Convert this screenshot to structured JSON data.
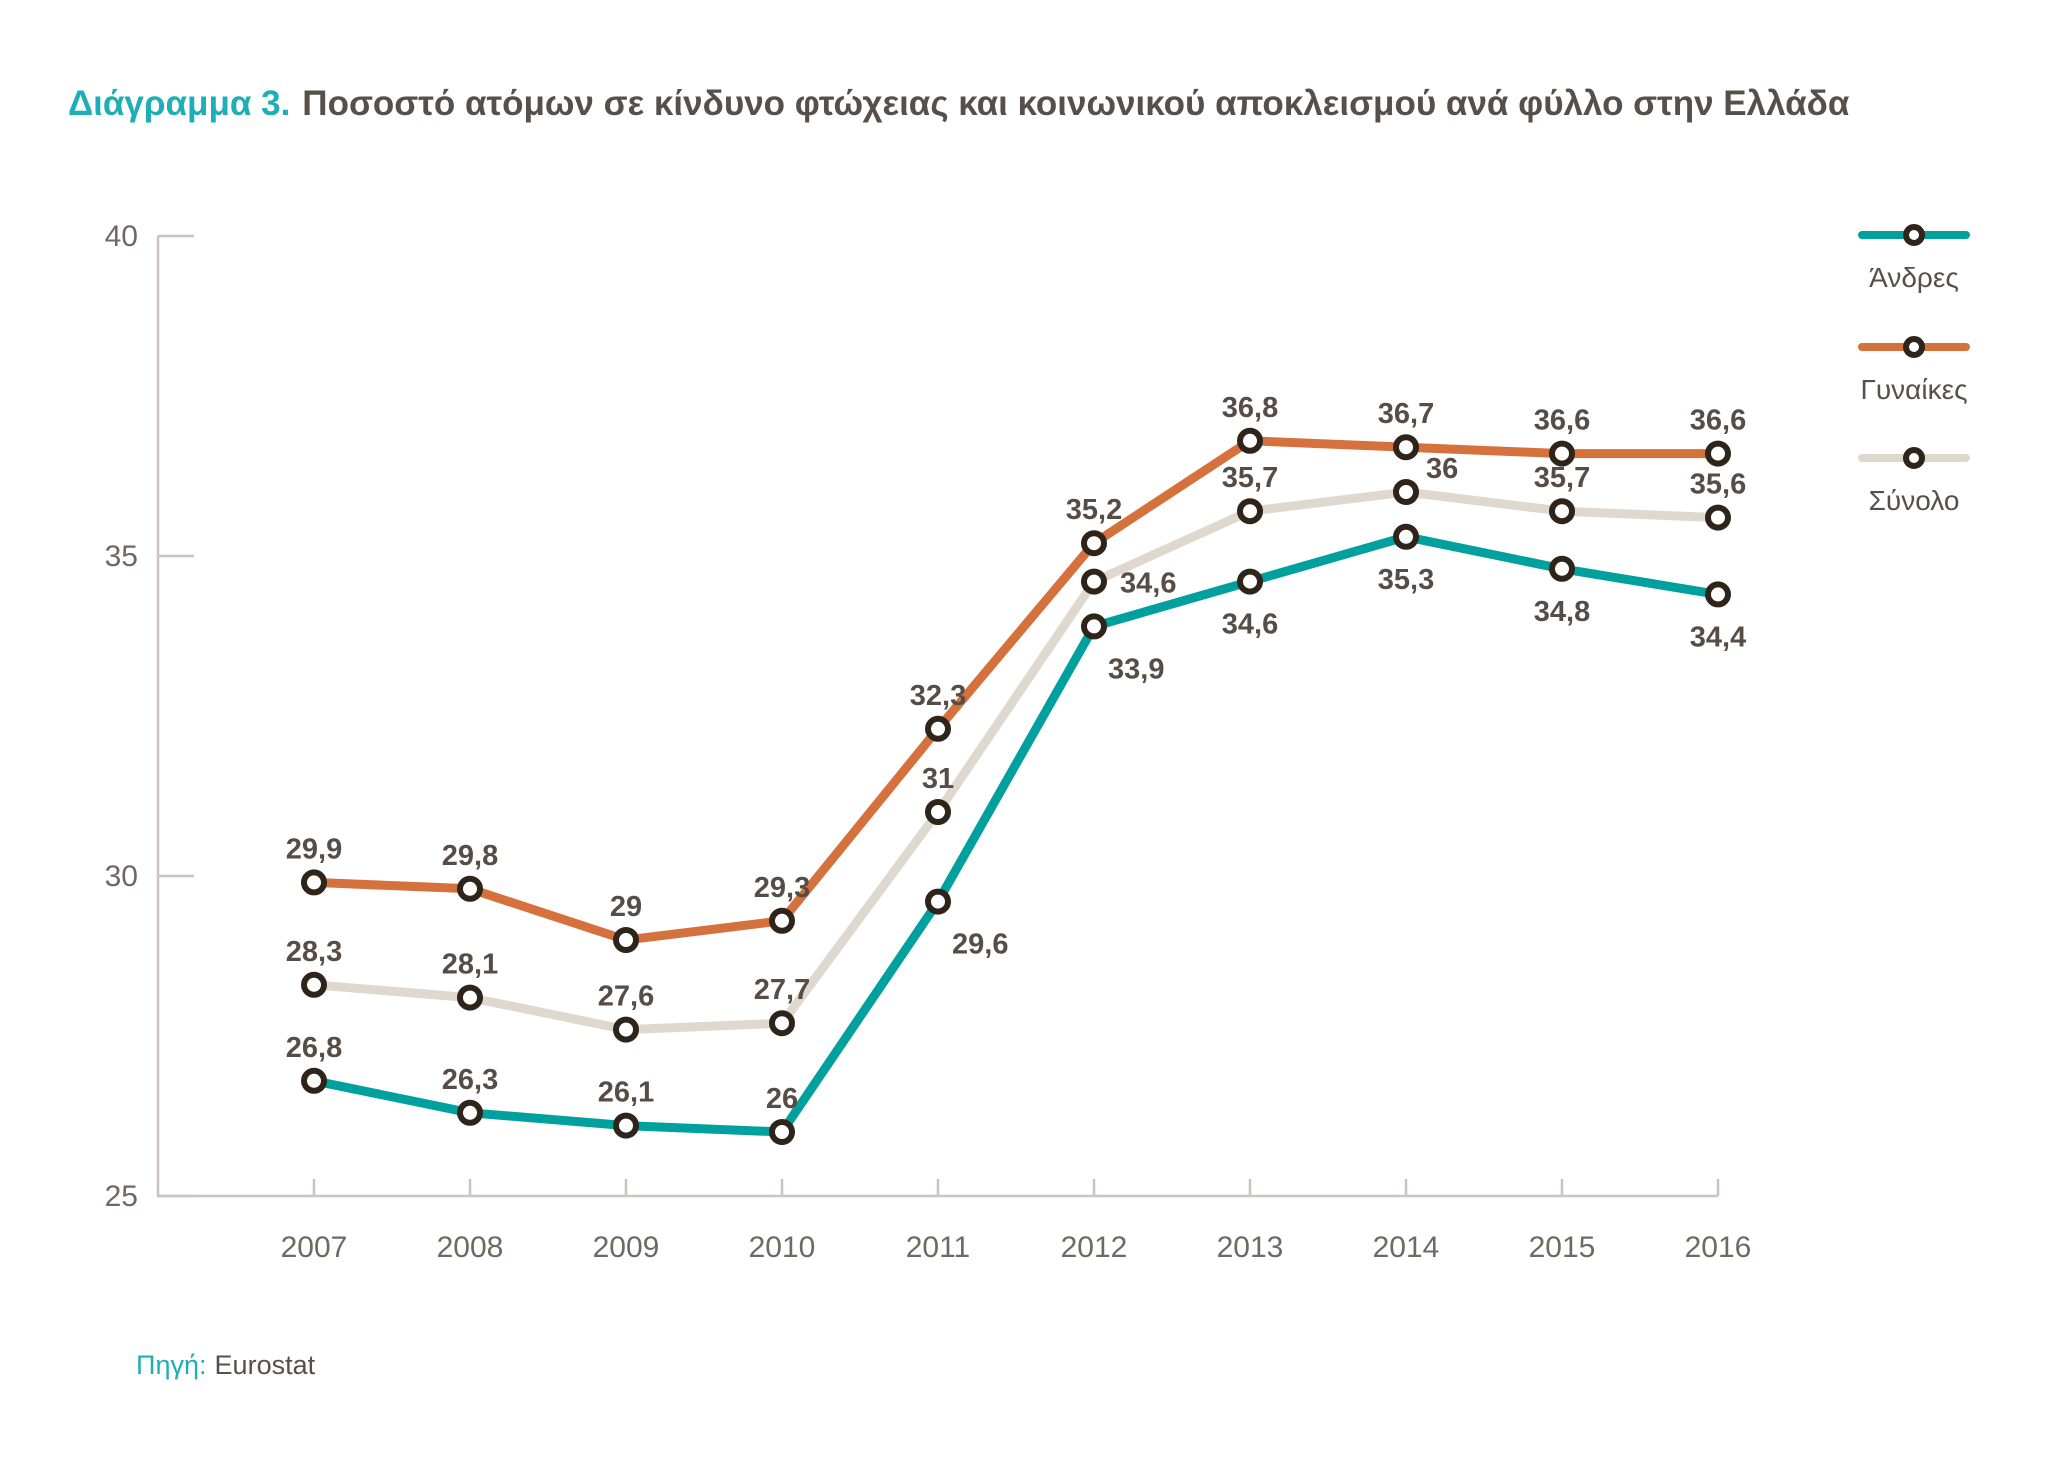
{
  "title": {
    "prefix": "Διάγραμμα 3.",
    "text": "Ποσοστό ατόμων σε κίνδυνο φτώχειας και κοινωνικού αποκλεισμού ανά φύλλο στην Ελλάδα"
  },
  "source": {
    "label": "Πηγή:",
    "value": "Eurostat"
  },
  "colors": {
    "accent_teal": "#1DAFB5",
    "men_line": "#00A09E",
    "women_line": "#D4713C",
    "total_line": "#DFD8CF",
    "marker_ring": "#2F2419",
    "axis_line": "#C9C4BE",
    "axis_text": "#6F6962",
    "value_label_text": "#564E46",
    "title_text": "#57504A"
  },
  "chart_data": {
    "type": "line",
    "title": "Ποσοστό ατόμων σε κίνδυνο φτώχειας και κοινωνικού αποκλεισμού ανά φύλλο στην Ελλάδα",
    "x": [
      2007,
      2008,
      2009,
      2010,
      2011,
      2012,
      2013,
      2014,
      2015,
      2016
    ],
    "xlabel": "",
    "ylabel": "",
    "ylim": [
      25,
      40
    ],
    "yticks": [
      40,
      35,
      30,
      25
    ],
    "grid": false,
    "legend_position": "top-right",
    "decimal_separator": ",",
    "series": [
      {
        "name": "Άνδρες",
        "color": "#00A09E",
        "values": [
          26.8,
          26.3,
          26.1,
          26,
          29.6,
          33.9,
          34.6,
          35.3,
          34.8,
          34.4
        ]
      },
      {
        "name": "Γυναίκες",
        "color": "#D4713C",
        "values": [
          29.9,
          29.8,
          29,
          29.3,
          32.3,
          35.2,
          36.8,
          36.7,
          36.6,
          36.6
        ]
      },
      {
        "name": "Σύνολο",
        "color": "#DFD8CF",
        "values": [
          28.3,
          28.1,
          27.6,
          27.7,
          31,
          34.6,
          35.7,
          36,
          35.7,
          35.6
        ]
      }
    ]
  }
}
